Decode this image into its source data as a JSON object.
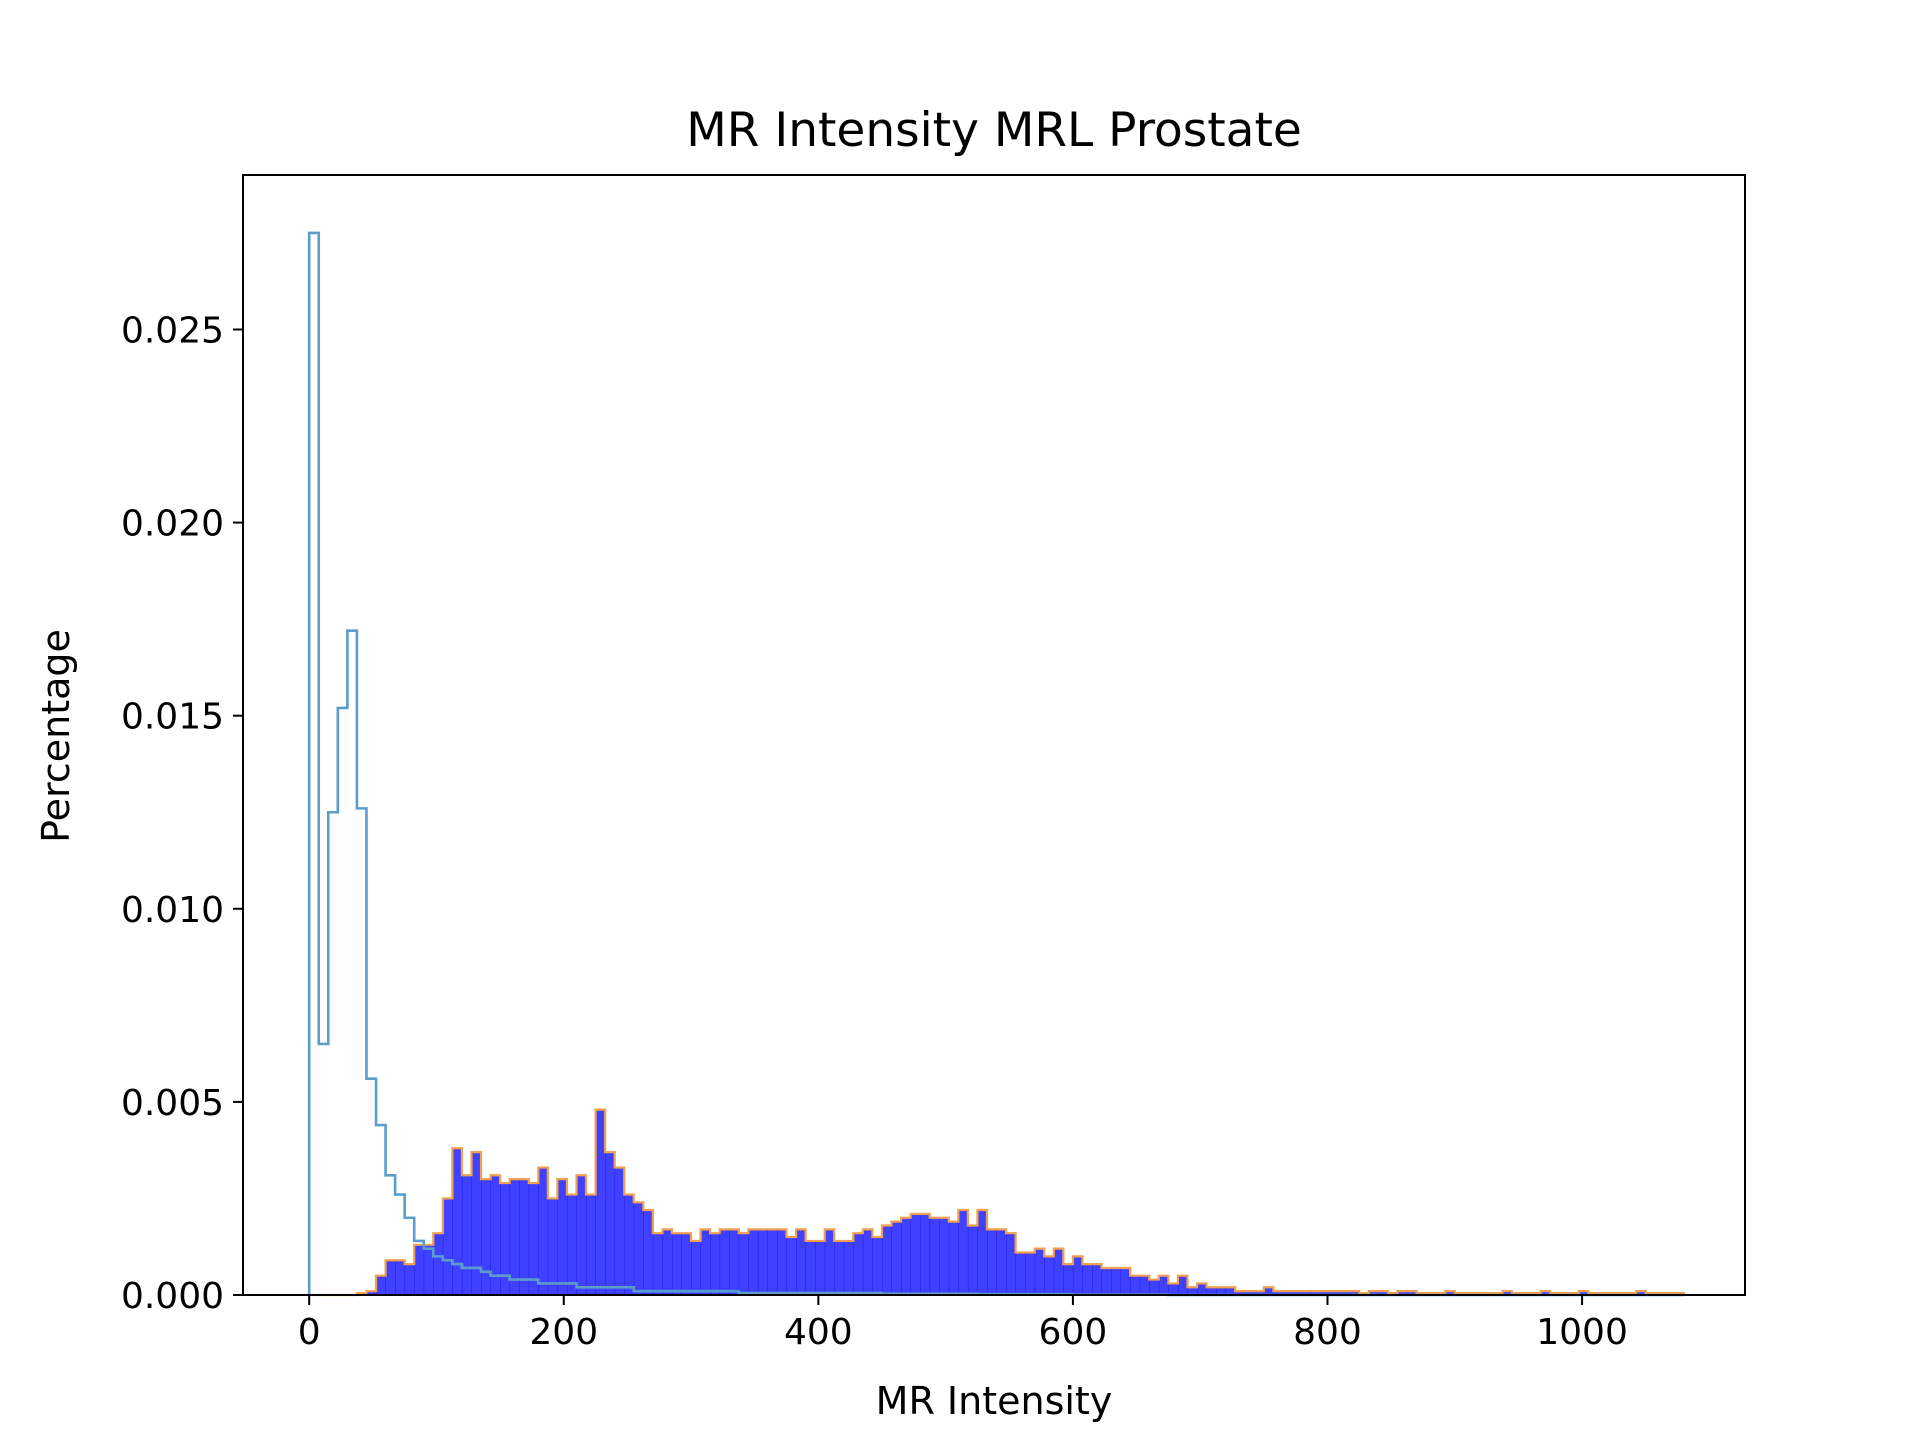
{
  "chart_data": {
    "type": "histogram",
    "title": "MR Intensity MRL Prostate",
    "xlabel": "MR Intensity",
    "ylabel": "Percentage",
    "xlim": [
      -52,
      1128
    ],
    "ylim": [
      0,
      0.029
    ],
    "xticks": [
      0,
      200,
      400,
      600,
      800,
      1000
    ],
    "xtick_labels": [
      "0",
      "200",
      "400",
      "600",
      "800",
      "1000"
    ],
    "yticks": [
      0,
      0.005,
      0.01,
      0.015,
      0.02,
      0.025
    ],
    "ytick_labels": [
      "0.000",
      "0.005",
      "0.010",
      "0.015",
      "0.020",
      "0.025"
    ],
    "grid": false,
    "legend": "none",
    "series": [
      {
        "style": "step-outline",
        "color": "#5b9ec9",
        "bin_width": 7.5,
        "x_start": 0,
        "values": [
          0.0275,
          0.0065,
          0.0125,
          0.0152,
          0.0172,
          0.0126,
          0.0056,
          0.0044,
          0.0031,
          0.0026,
          0.002,
          0.0014,
          0.0012,
          0.001,
          0.0009,
          0.0008,
          0.0007,
          0.0007,
          0.0006,
          0.0005,
          0.0005,
          0.0004,
          0.0004,
          0.0004,
          0.0003,
          0.0003,
          0.0003,
          0.0003,
          0.0002,
          0.0002,
          0.0002,
          0.0002,
          0.0002,
          0.0002,
          0.0001,
          0.0001,
          0.0001,
          0.0001,
          0.0001,
          0.0001,
          0.0001,
          0.0001,
          0.0001,
          0.0001,
          0.0001,
          5e-05,
          5e-05,
          5e-05,
          5e-05,
          5e-05,
          5e-05,
          5e-05,
          5e-05,
          5e-05,
          5e-05,
          5e-05,
          5e-05,
          5e-05,
          5e-05,
          5e-05,
          3e-05,
          3e-05,
          3e-05,
          3e-05,
          3e-05,
          3e-05,
          3e-05,
          3e-05,
          3e-05,
          3e-05,
          2e-05,
          2e-05,
          2e-05,
          2e-05,
          2e-05,
          2e-05,
          2e-05,
          2e-05,
          2e-05,
          2e-05,
          1e-05,
          1e-05,
          1e-05,
          1e-05,
          1e-05,
          1e-05,
          1e-05,
          1e-05,
          1e-05,
          1e-05,
          0,
          0,
          0,
          0,
          0,
          0,
          0,
          0,
          0,
          0,
          0,
          0,
          0,
          0,
          0,
          0,
          0,
          0,
          0,
          0,
          0,
          0,
          0,
          0,
          0,
          0,
          0,
          0,
          0,
          0,
          0,
          0,
          0,
          0,
          0,
          0,
          0,
          0,
          0,
          0,
          0,
          0,
          0,
          0,
          0,
          0,
          0,
          0,
          0,
          0,
          0,
          0,
          0,
          0
        ]
      },
      {
        "style": "filled",
        "color": "#0000ff",
        "edge_color": "#f0a050",
        "bin_width": 7.5,
        "x_start": 0,
        "values": [
          0,
          0,
          0,
          0,
          0,
          5e-05,
          0.0001,
          0.0005,
          0.0009,
          0.0009,
          0.0008,
          0.0013,
          0.0013,
          0.0016,
          0.0025,
          0.0038,
          0.0031,
          0.0037,
          0.003,
          0.0031,
          0.0029,
          0.003,
          0.003,
          0.0029,
          0.0033,
          0.0025,
          0.003,
          0.0026,
          0.0031,
          0.0026,
          0.0048,
          0.0037,
          0.0033,
          0.0026,
          0.0024,
          0.0022,
          0.0016,
          0.0017,
          0.0016,
          0.0016,
          0.0014,
          0.0017,
          0.0016,
          0.0017,
          0.0017,
          0.0016,
          0.0017,
          0.0017,
          0.0017,
          0.0017,
          0.0015,
          0.0017,
          0.0014,
          0.0014,
          0.0017,
          0.0014,
          0.0014,
          0.0016,
          0.0017,
          0.0015,
          0.0018,
          0.0019,
          0.002,
          0.0021,
          0.0021,
          0.002,
          0.002,
          0.0019,
          0.0022,
          0.0018,
          0.0022,
          0.0017,
          0.0017,
          0.0016,
          0.0011,
          0.0011,
          0.0012,
          0.001,
          0.0012,
          0.0008,
          0.001,
          0.0008,
          0.0008,
          0.0007,
          0.0007,
          0.0007,
          0.0005,
          0.0005,
          0.0004,
          0.0005,
          0.0003,
          0.0005,
          0.0002,
          0.0003,
          0.0002,
          0.0002,
          0.0002,
          0.0001,
          0.0001,
          0.0001,
          0.0002,
          0.0001,
          0.0001,
          0.0001,
          0.0001,
          0.0001,
          0.0001,
          0.0001,
          0.0001,
          0.0001,
          5e-05,
          0.0001,
          0.0001,
          5e-05,
          0.0001,
          0.0001,
          5e-05,
          5e-05,
          5e-05,
          0.0001,
          5e-05,
          5e-05,
          5e-05,
          5e-05,
          5e-05,
          0.0001,
          5e-05,
          5e-05,
          5e-05,
          0.0001,
          5e-05,
          5e-05,
          5e-05,
          0.0001,
          5e-05,
          5e-05,
          5e-05,
          5e-05,
          5e-05,
          0.0001,
          5e-05,
          5e-05,
          5e-05,
          5e-05
        ]
      }
    ]
  }
}
